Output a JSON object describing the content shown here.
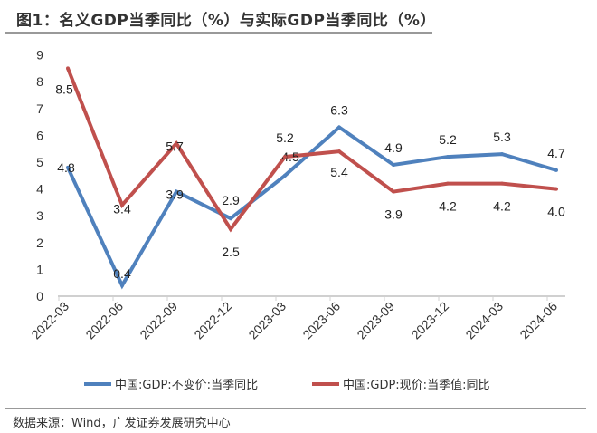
{
  "title": "图1：名义GDP当季同比（%）与实际GDP当季同比（%）",
  "source": "数据来源：Wind，广发证券发展研究中心",
  "chart_data": {
    "type": "line",
    "categories": [
      "2022-03",
      "2022-06",
      "2022-09",
      "2022-12",
      "2023-03",
      "2023-06",
      "2023-09",
      "2023-12",
      "2024-03",
      "2024-06"
    ],
    "series": [
      {
        "name": "中国:GDP:不变价:当季同比",
        "color": "#4f81bd",
        "values": [
          4.8,
          0.4,
          3.9,
          2.9,
          4.5,
          6.3,
          4.9,
          5.2,
          5.3,
          4.7
        ]
      },
      {
        "name": "中国:GDP:现价:当季值:同比",
        "color": "#c0504d",
        "values": [
          8.5,
          3.4,
          5.7,
          2.5,
          5.2,
          5.4,
          3.9,
          4.2,
          4.2,
          4.0
        ]
      }
    ],
    "yticks": [
      "0",
      "1",
      "2",
      "3",
      "4",
      "5",
      "6",
      "7",
      "8",
      "9"
    ],
    "ylim": [
      0,
      9
    ],
    "grid": false,
    "data_labels": true,
    "legend": "bottom"
  }
}
